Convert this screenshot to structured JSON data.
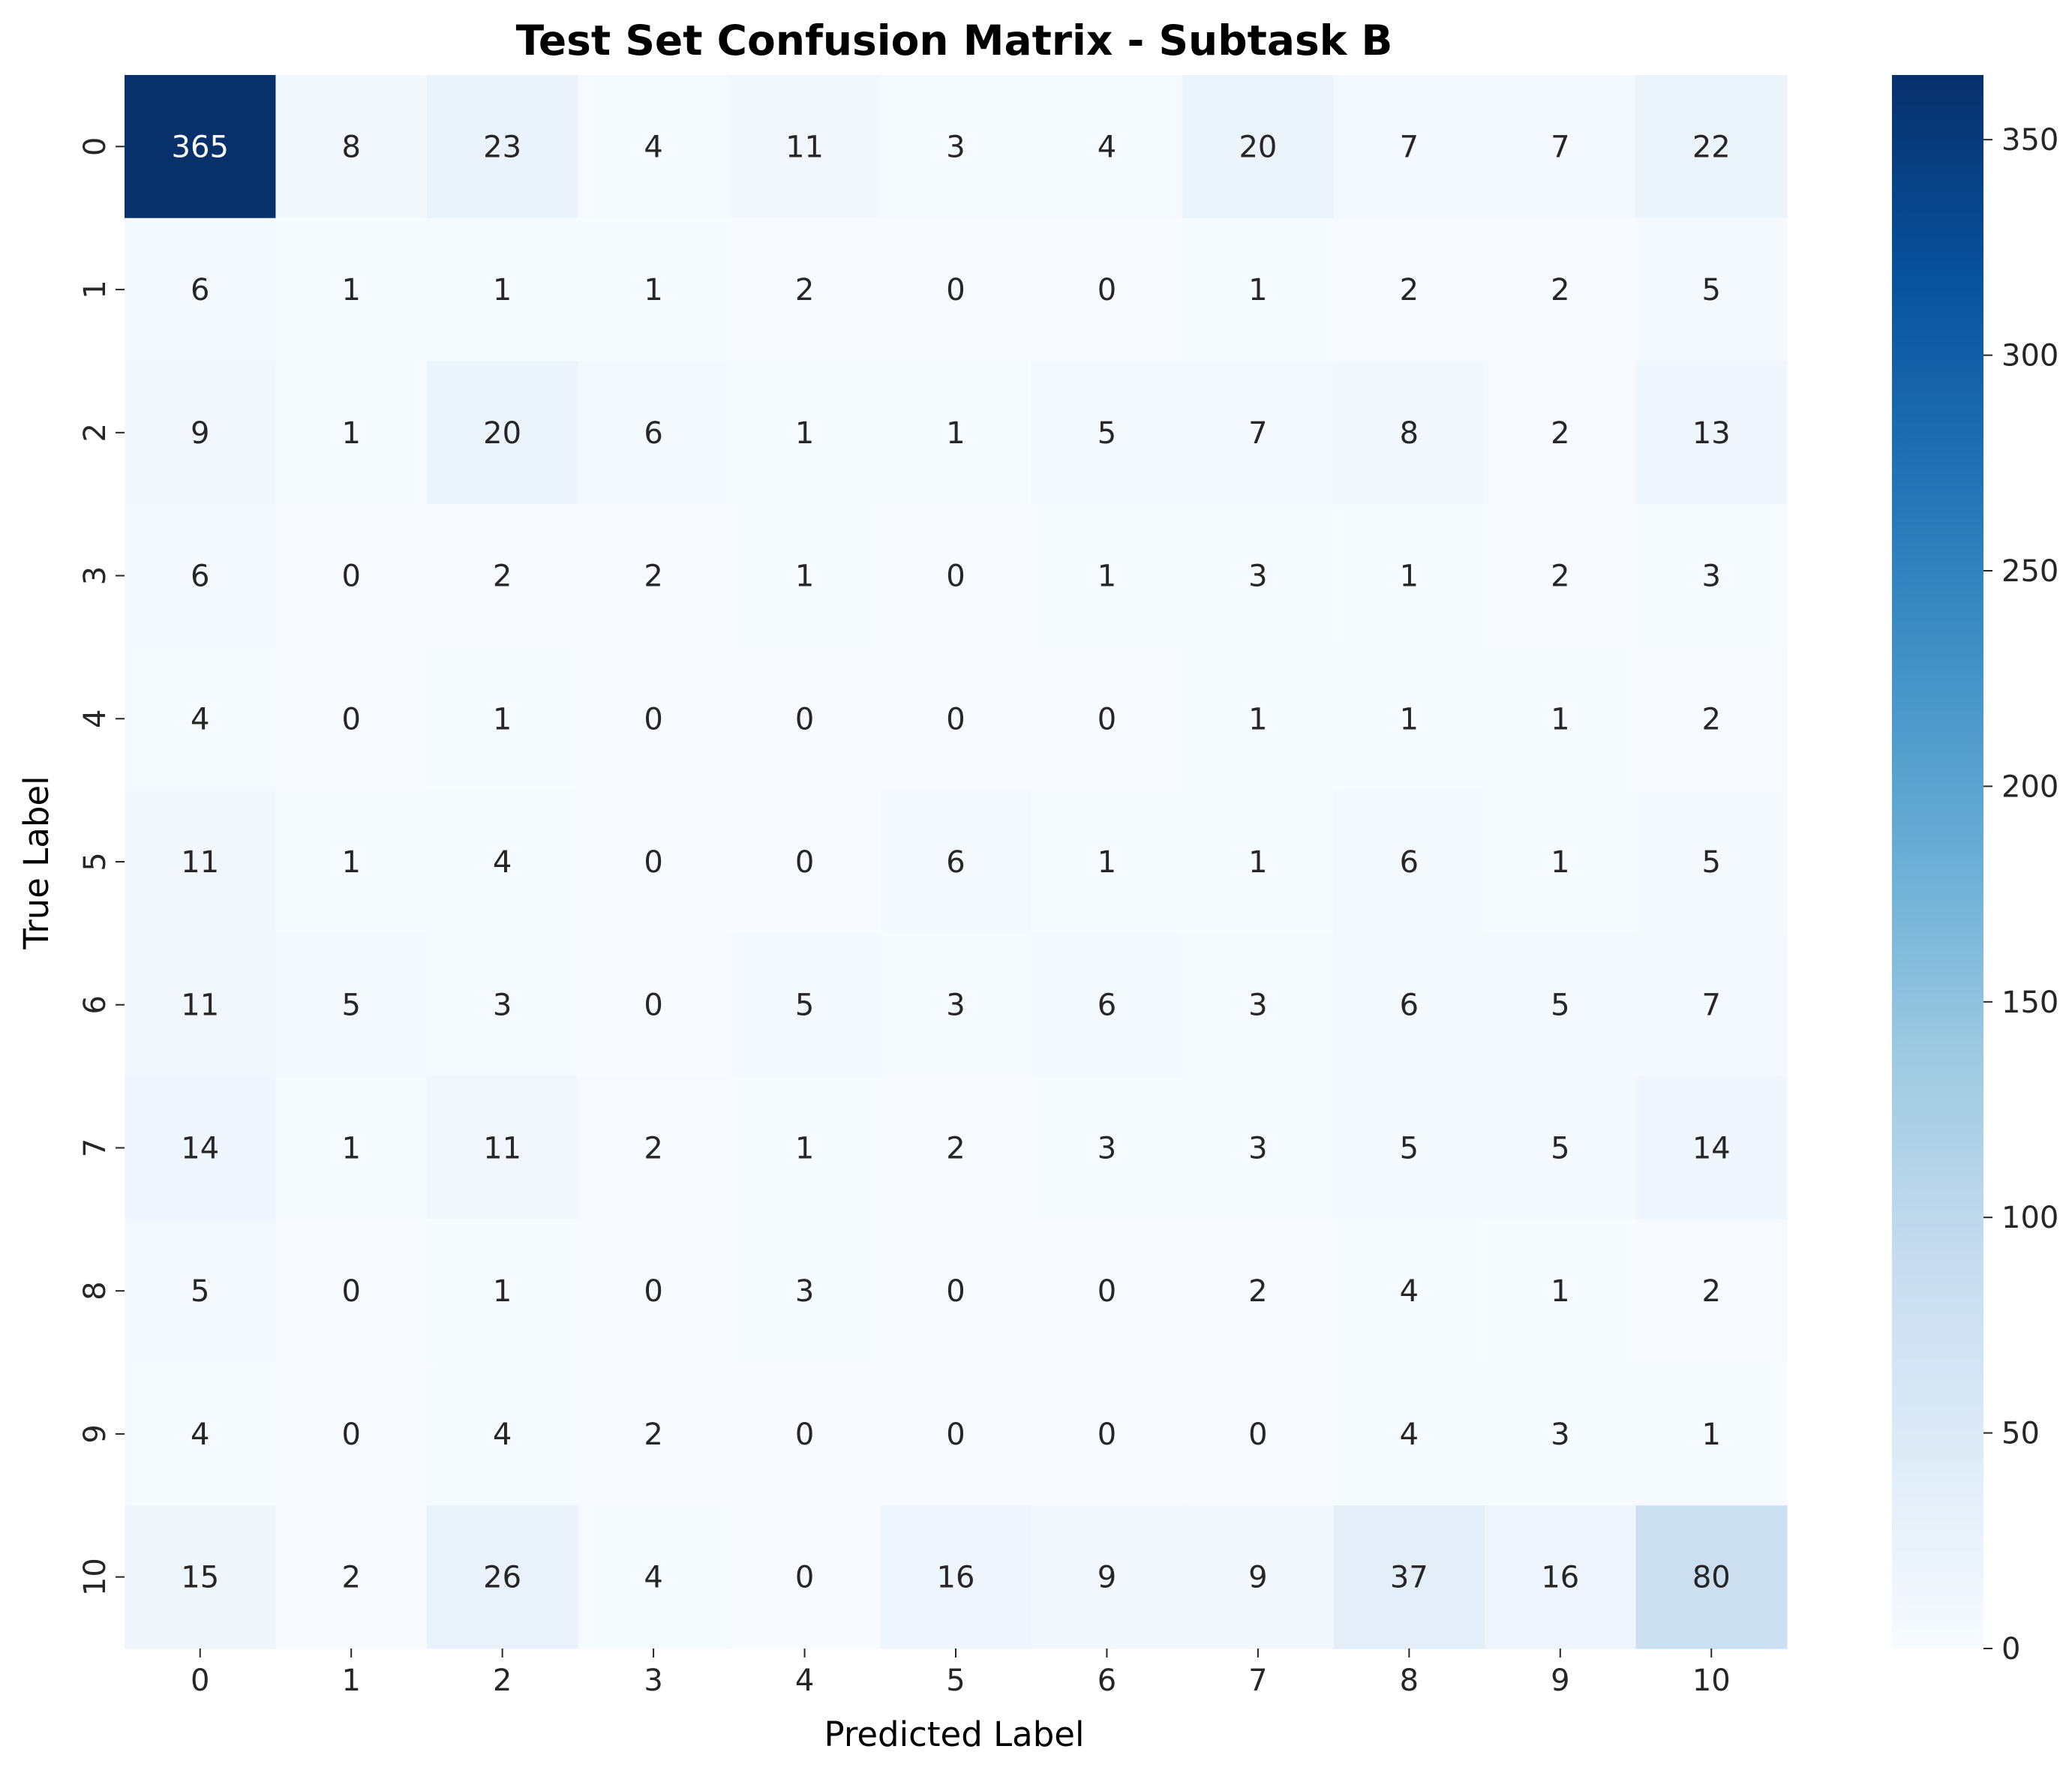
{
  "chart_data": {
    "type": "heatmap",
    "title": "Test Set Confusion Matrix - Subtask B",
    "xlabel": "Predicted Label",
    "ylabel": "True Label",
    "x_categories": [
      "0",
      "1",
      "2",
      "3",
      "4",
      "5",
      "6",
      "7",
      "8",
      "9",
      "10"
    ],
    "y_categories": [
      "0",
      "1",
      "2",
      "3",
      "4",
      "5",
      "6",
      "7",
      "8",
      "9",
      "10"
    ],
    "matrix": [
      [
        365,
        8,
        23,
        4,
        11,
        3,
        4,
        20,
        7,
        7,
        22
      ],
      [
        6,
        1,
        1,
        1,
        2,
        0,
        0,
        1,
        2,
        2,
        5
      ],
      [
        9,
        1,
        20,
        6,
        1,
        1,
        5,
        7,
        8,
        2,
        13
      ],
      [
        6,
        0,
        2,
        2,
        1,
        0,
        1,
        3,
        1,
        2,
        3
      ],
      [
        4,
        0,
        1,
        0,
        0,
        0,
        0,
        1,
        1,
        1,
        2
      ],
      [
        11,
        1,
        4,
        0,
        0,
        6,
        1,
        1,
        6,
        1,
        5
      ],
      [
        11,
        5,
        3,
        0,
        5,
        3,
        6,
        3,
        6,
        5,
        7
      ],
      [
        14,
        1,
        11,
        2,
        1,
        2,
        3,
        3,
        5,
        5,
        14
      ],
      [
        5,
        0,
        1,
        0,
        3,
        0,
        0,
        2,
        4,
        1,
        2
      ],
      [
        4,
        0,
        4,
        2,
        0,
        0,
        0,
        0,
        4,
        3,
        1
      ],
      [
        15,
        2,
        26,
        4,
        0,
        16,
        9,
        9,
        37,
        16,
        80
      ]
    ],
    "colormap": "Blues",
    "colorbar": {
      "range": [
        0,
        365
      ],
      "ticks": [
        0,
        50,
        100,
        150,
        200,
        250,
        300,
        350
      ],
      "tick_labels": [
        "0",
        "50",
        "100",
        "150",
        "200",
        "250",
        "300",
        "350"
      ]
    }
  }
}
